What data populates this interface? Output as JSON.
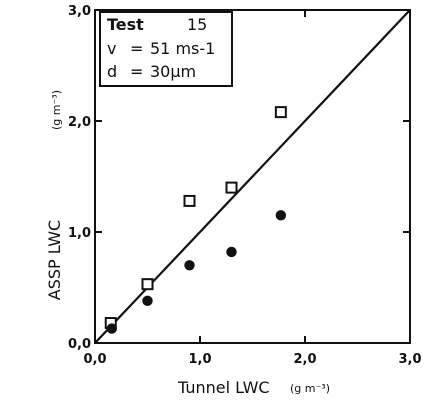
{
  "chart_data": {
    "type": "scatter",
    "title": "",
    "xlabel": "Tunnel  LWC",
    "xunit": "(g m⁻³)",
    "ylabel": "ASSP  LWC",
    "yunit": "(g m⁻³)",
    "xlim": [
      0,
      3.0
    ],
    "ylim": [
      0,
      3.0
    ],
    "x_ticks": [
      "0,0",
      "1,0",
      "2,0",
      "3,0"
    ],
    "y_ticks": [
      "0,0",
      "1,0",
      "2,0",
      "3,0"
    ],
    "grid": false,
    "legend_box": {
      "placement": "top-left",
      "lines": [
        {
          "key": "Test",
          "sep": "",
          "value": "15"
        },
        {
          "key": "v",
          "sep": "=",
          "value": "51 ms-1"
        },
        {
          "key": "d",
          "sep": "=",
          "value": "30µm"
        }
      ]
    },
    "reference_line": {
      "x": [
        0,
        3.0
      ],
      "y": [
        0,
        3.0
      ]
    },
    "series": [
      {
        "marker": "open-square",
        "x": [
          0.15,
          0.5,
          0.9,
          1.3,
          1.77
        ],
        "y": [
          0.18,
          0.53,
          1.28,
          1.4,
          2.08
        ]
      },
      {
        "marker": "filled-circle",
        "x": [
          0.16,
          0.5,
          0.9,
          1.3,
          1.77
        ],
        "y": [
          0.13,
          0.38,
          0.7,
          0.82,
          1.15
        ]
      }
    ]
  }
}
